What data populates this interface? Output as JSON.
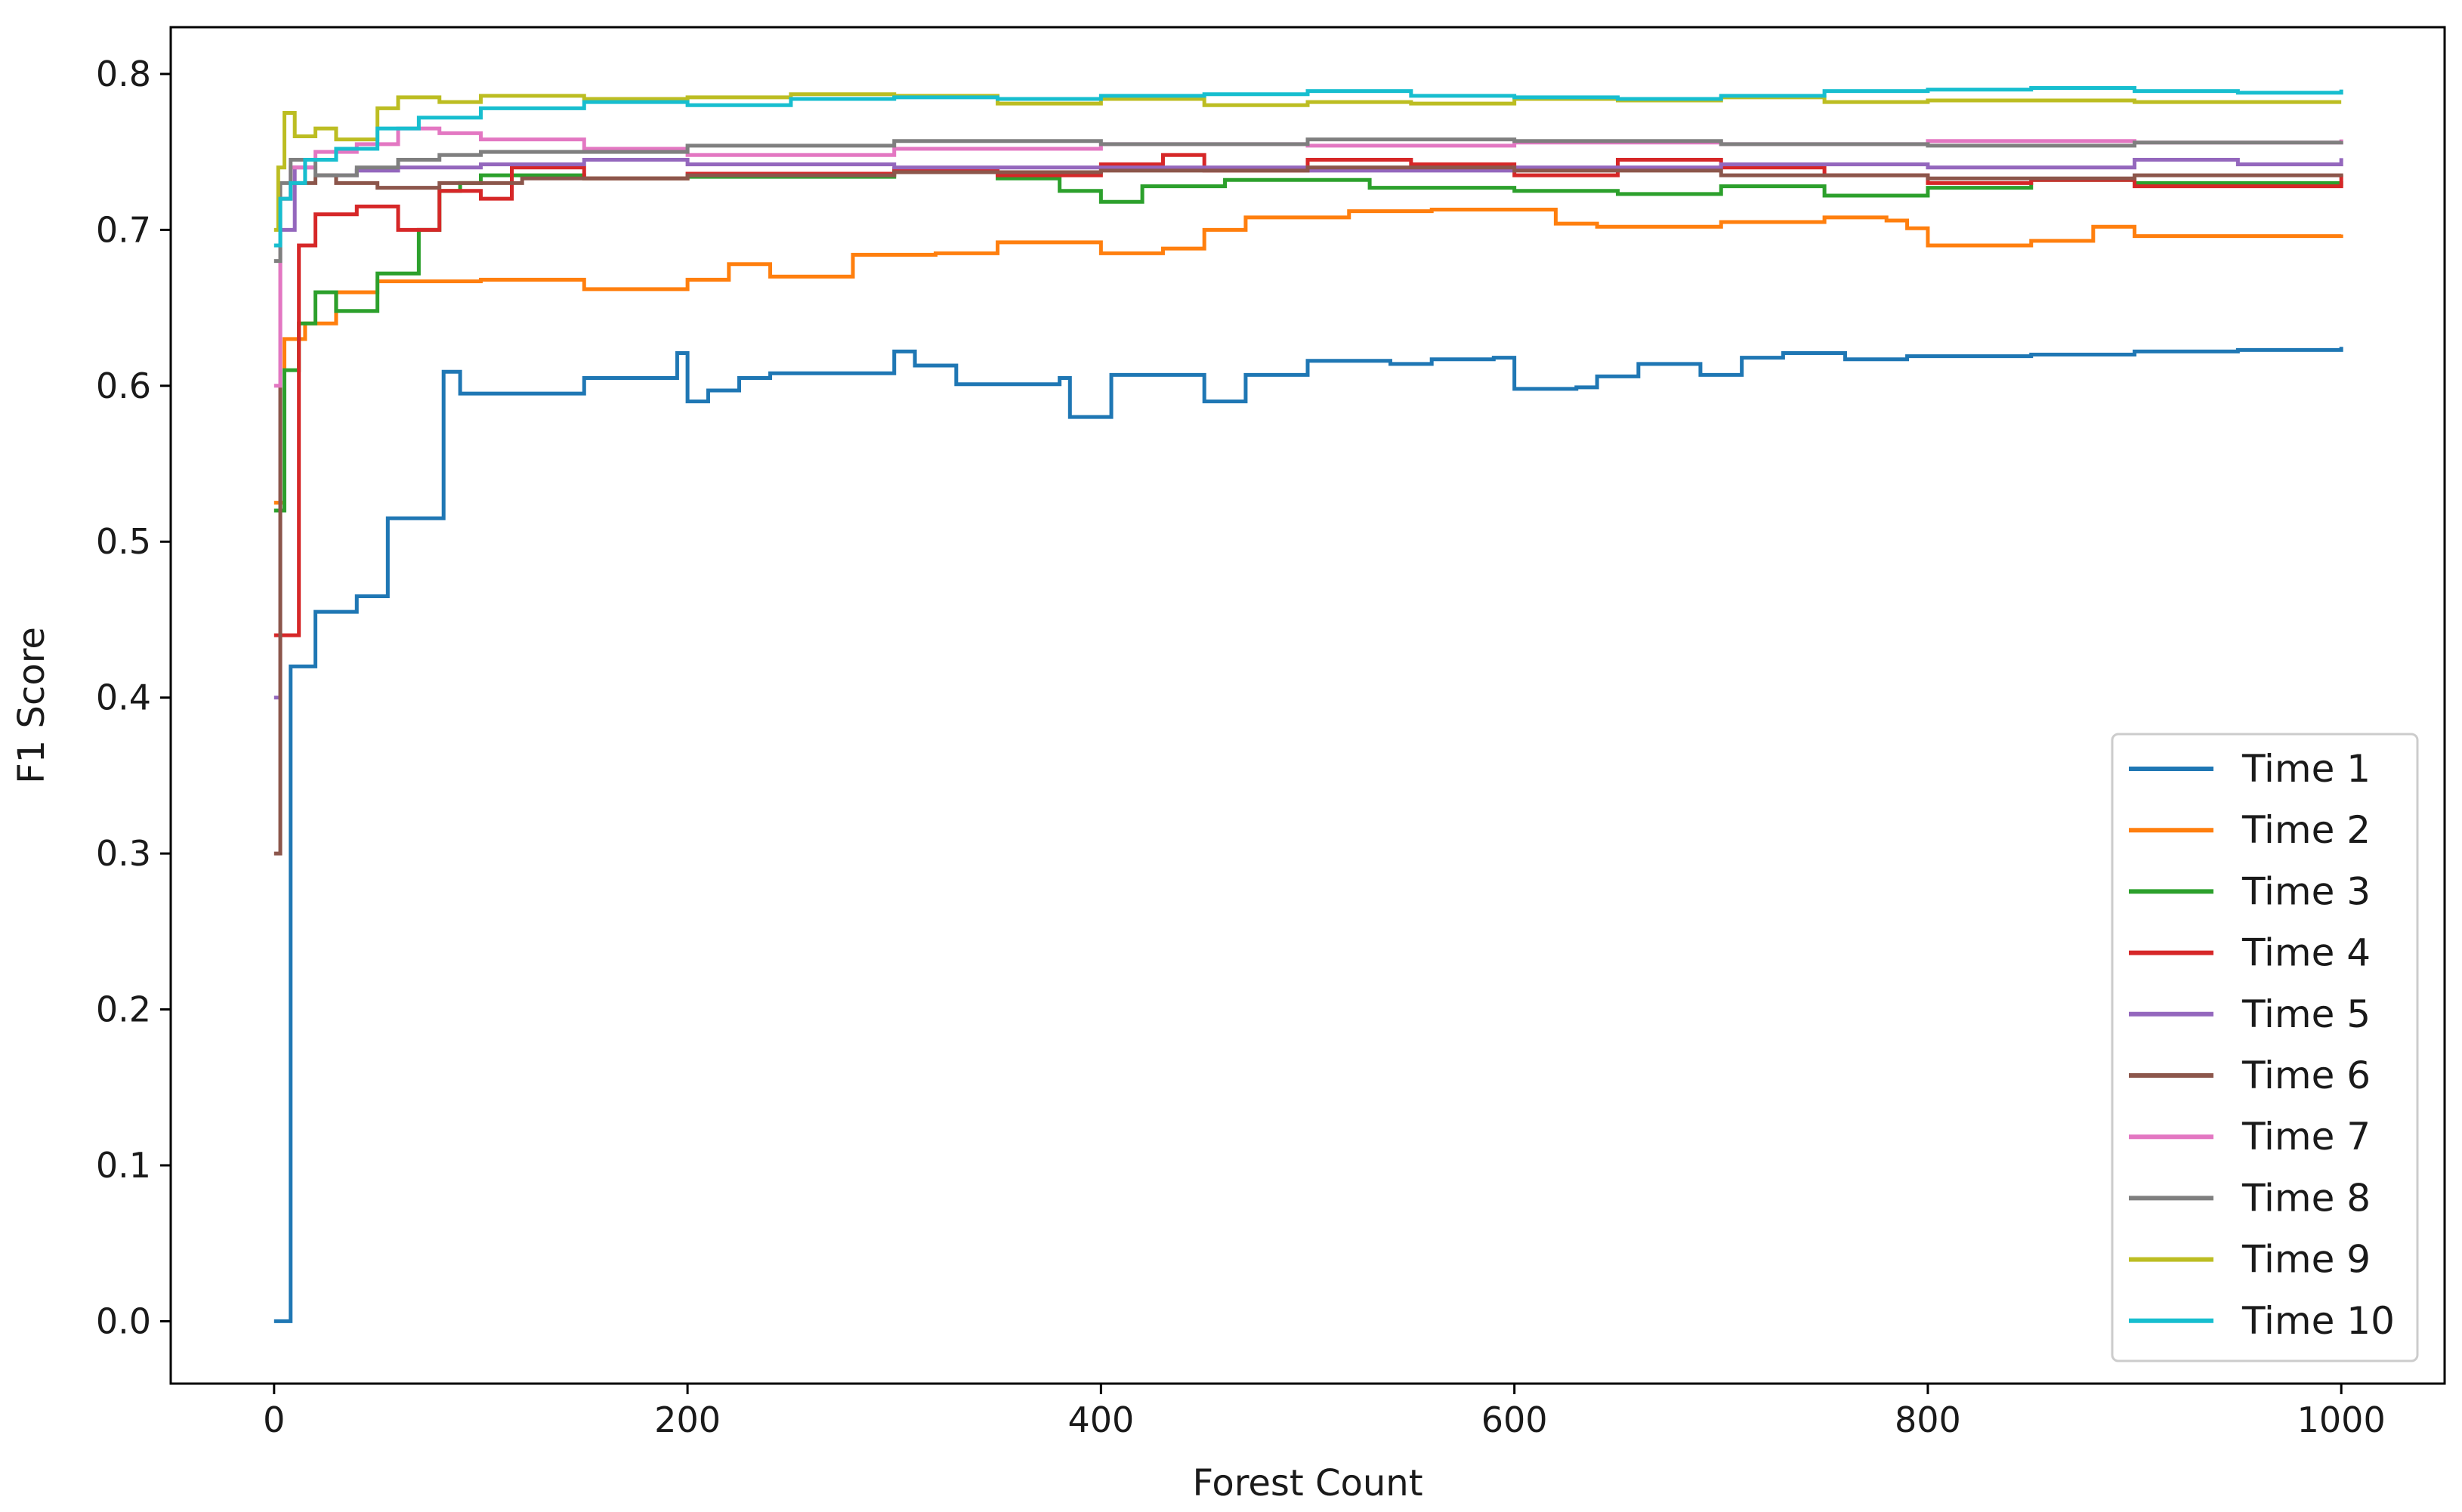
{
  "chart_data": {
    "type": "line",
    "title": "",
    "xlabel": "Forest Count",
    "ylabel": "F1 Score",
    "xlim": [
      -50,
      1050
    ],
    "ylim": [
      -0.04,
      0.83
    ],
    "xticks": [
      0,
      200,
      400,
      600,
      800,
      1000
    ],
    "yticks": [
      0.0,
      0.1,
      0.2,
      0.3,
      0.4,
      0.5,
      0.6,
      0.7,
      0.8
    ],
    "xtick_labels": [
      "0",
      "200",
      "400",
      "600",
      "800",
      "1000"
    ],
    "ytick_labels": [
      "0.0",
      "0.1",
      "0.2",
      "0.3",
      "0.4",
      "0.5",
      "0.6",
      "0.7",
      "0.8"
    ],
    "grid": false,
    "legend_position": "lower-right",
    "step": true,
    "series": [
      {
        "name": "Time 1",
        "color": "#1f77b4",
        "x": [
          0,
          6,
          8,
          20,
          40,
          55,
          82,
          90,
          100,
          150,
          195,
          200,
          210,
          225,
          240,
          300,
          310,
          330,
          380,
          385,
          400,
          405,
          450,
          470,
          500,
          540,
          560,
          590,
          600,
          630,
          640,
          660,
          690,
          710,
          730,
          760,
          790,
          850,
          900,
          950,
          1000
        ],
        "y": [
          0.0,
          0.0,
          0.42,
          0.455,
          0.465,
          0.515,
          0.609,
          0.595,
          0.595,
          0.605,
          0.621,
          0.59,
          0.597,
          0.605,
          0.608,
          0.622,
          0.613,
          0.601,
          0.605,
          0.58,
          0.58,
          0.607,
          0.59,
          0.607,
          0.616,
          0.614,
          0.617,
          0.618,
          0.598,
          0.599,
          0.606,
          0.614,
          0.607,
          0.618,
          0.621,
          0.617,
          0.619,
          0.62,
          0.622,
          0.623,
          0.625
        ]
      },
      {
        "name": "Time 2",
        "color": "#ff7f0e",
        "x": [
          0,
          5,
          15,
          30,
          50,
          100,
          150,
          200,
          220,
          240,
          280,
          320,
          350,
          400,
          430,
          450,
          470,
          520,
          560,
          600,
          620,
          640,
          700,
          750,
          780,
          790,
          800,
          850,
          880,
          900,
          1000
        ],
        "y": [
          0.525,
          0.63,
          0.64,
          0.66,
          0.667,
          0.668,
          0.662,
          0.668,
          0.678,
          0.67,
          0.684,
          0.685,
          0.692,
          0.685,
          0.688,
          0.7,
          0.708,
          0.712,
          0.713,
          0.713,
          0.704,
          0.702,
          0.705,
          0.708,
          0.706,
          0.701,
          0.69,
          0.693,
          0.702,
          0.696,
          0.697
        ]
      },
      {
        "name": "Time 3",
        "color": "#2ca02c",
        "x": [
          0,
          5,
          12,
          20,
          30,
          50,
          70,
          80,
          90,
          100,
          150,
          200,
          300,
          350,
          380,
          400,
          420,
          460,
          530,
          600,
          650,
          700,
          750,
          800,
          850,
          900,
          1000
        ],
        "y": [
          0.52,
          0.61,
          0.64,
          0.66,
          0.648,
          0.672,
          0.7,
          0.725,
          0.73,
          0.735,
          0.733,
          0.734,
          0.738,
          0.733,
          0.725,
          0.718,
          0.728,
          0.732,
          0.727,
          0.725,
          0.723,
          0.728,
          0.722,
          0.727,
          0.732,
          0.73,
          0.728
        ]
      },
      {
        "name": "Time 4",
        "color": "#d62728",
        "x": [
          0,
          3,
          12,
          20,
          40,
          60,
          80,
          100,
          115,
          150,
          200,
          250,
          300,
          350,
          400,
          430,
          450,
          500,
          550,
          600,
          650,
          700,
          750,
          800,
          850,
          900,
          1000
        ],
        "y": [
          0.44,
          0.44,
          0.69,
          0.71,
          0.715,
          0.7,
          0.725,
          0.72,
          0.74,
          0.733,
          0.736,
          0.736,
          0.739,
          0.735,
          0.742,
          0.748,
          0.738,
          0.745,
          0.742,
          0.735,
          0.745,
          0.74,
          0.735,
          0.73,
          0.732,
          0.728,
          0.735
        ]
      },
      {
        "name": "Time 5",
        "color": "#9467bd",
        "x": [
          0,
          3,
          10,
          20,
          40,
          60,
          100,
          150,
          200,
          300,
          400,
          500,
          600,
          700,
          800,
          900,
          950,
          1000
        ],
        "y": [
          0.4,
          0.7,
          0.74,
          0.735,
          0.738,
          0.74,
          0.742,
          0.745,
          0.742,
          0.74,
          0.74,
          0.738,
          0.74,
          0.742,
          0.74,
          0.745,
          0.742,
          0.746
        ]
      },
      {
        "name": "Time 6",
        "color": "#8c564b",
        "x": [
          0,
          3,
          8,
          20,
          30,
          50,
          80,
          120,
          200,
          300,
          400,
          500,
          600,
          700,
          800,
          900,
          1000
        ],
        "y": [
          0.3,
          0.72,
          0.73,
          0.735,
          0.73,
          0.727,
          0.73,
          0.733,
          0.735,
          0.737,
          0.738,
          0.74,
          0.738,
          0.735,
          0.733,
          0.735,
          0.734
        ]
      },
      {
        "name": "Time 7",
        "color": "#e377c2",
        "x": [
          0,
          3,
          8,
          20,
          40,
          60,
          80,
          100,
          150,
          200,
          300,
          400,
          500,
          600,
          700,
          800,
          900,
          1000
        ],
        "y": [
          0.6,
          0.72,
          0.74,
          0.75,
          0.755,
          0.765,
          0.762,
          0.758,
          0.752,
          0.748,
          0.752,
          0.755,
          0.754,
          0.756,
          0.755,
          0.757,
          0.756,
          0.758
        ]
      },
      {
        "name": "Time 8",
        "color": "#7f7f7f",
        "x": [
          0,
          3,
          8,
          20,
          40,
          60,
          80,
          100,
          200,
          300,
          400,
          500,
          600,
          700,
          800,
          900,
          1000
        ],
        "y": [
          0.68,
          0.73,
          0.745,
          0.735,
          0.74,
          0.745,
          0.748,
          0.75,
          0.754,
          0.757,
          0.755,
          0.758,
          0.757,
          0.755,
          0.754,
          0.756,
          0.757
        ]
      },
      {
        "name": "Time 9",
        "color": "#bcbd22",
        "x": [
          0,
          2,
          5,
          10,
          20,
          30,
          50,
          60,
          80,
          100,
          150,
          200,
          250,
          300,
          350,
          400,
          450,
          500,
          550,
          600,
          650,
          700,
          750,
          800,
          900,
          1000
        ],
        "y": [
          0.7,
          0.74,
          0.775,
          0.76,
          0.765,
          0.758,
          0.778,
          0.785,
          0.782,
          0.786,
          0.784,
          0.785,
          0.787,
          0.786,
          0.781,
          0.784,
          0.78,
          0.782,
          0.781,
          0.784,
          0.783,
          0.785,
          0.782,
          0.783,
          0.782,
          0.782
        ]
      },
      {
        "name": "Time 10",
        "color": "#17becf",
        "x": [
          0,
          3,
          8,
          15,
          30,
          50,
          70,
          100,
          150,
          200,
          250,
          300,
          350,
          400,
          450,
          500,
          550,
          600,
          650,
          700,
          750,
          800,
          850,
          900,
          950,
          1000
        ],
        "y": [
          0.69,
          0.72,
          0.73,
          0.745,
          0.752,
          0.765,
          0.772,
          0.778,
          0.782,
          0.78,
          0.784,
          0.785,
          0.784,
          0.786,
          0.787,
          0.789,
          0.786,
          0.785,
          0.784,
          0.786,
          0.789,
          0.79,
          0.791,
          0.789,
          0.788,
          0.79
        ]
      }
    ]
  }
}
